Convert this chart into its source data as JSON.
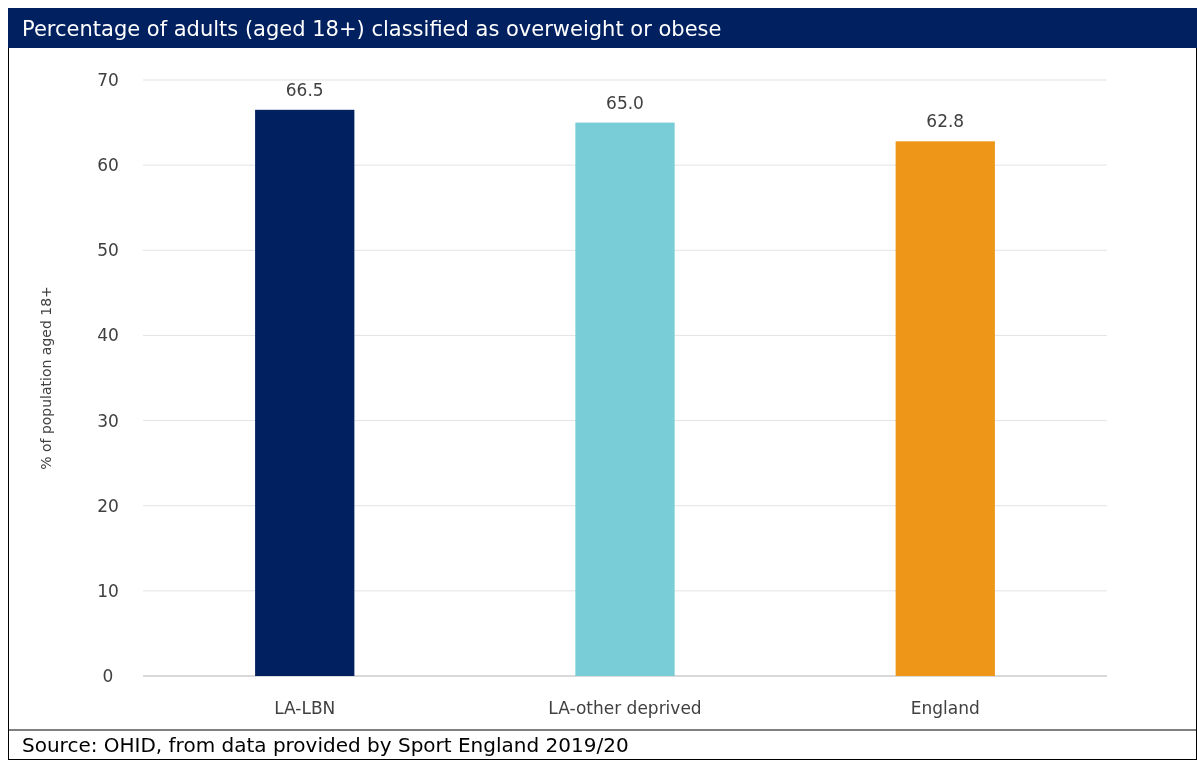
{
  "chart_data": {
    "type": "bar",
    "title": "Percentage of adults (aged 18+) classified as overweight or obese",
    "ylabel": "% of population aged 18+",
    "categories": [
      "LA-LBN",
      "LA-other deprived",
      "England"
    ],
    "values": [
      66.5,
      65.0,
      62.8
    ],
    "colors": [
      "#002060",
      "#78cdd7",
      "#ee9618"
    ],
    "value_labels": [
      "66.5",
      "65.0",
      "62.8"
    ],
    "ylim": [
      0,
      70
    ],
    "yticks": [
      0,
      10,
      20,
      30,
      40,
      50,
      60,
      70
    ],
    "grid": "y",
    "annotations": [
      "Source: OHID, from data provided by Sport England 2019/20"
    ]
  }
}
